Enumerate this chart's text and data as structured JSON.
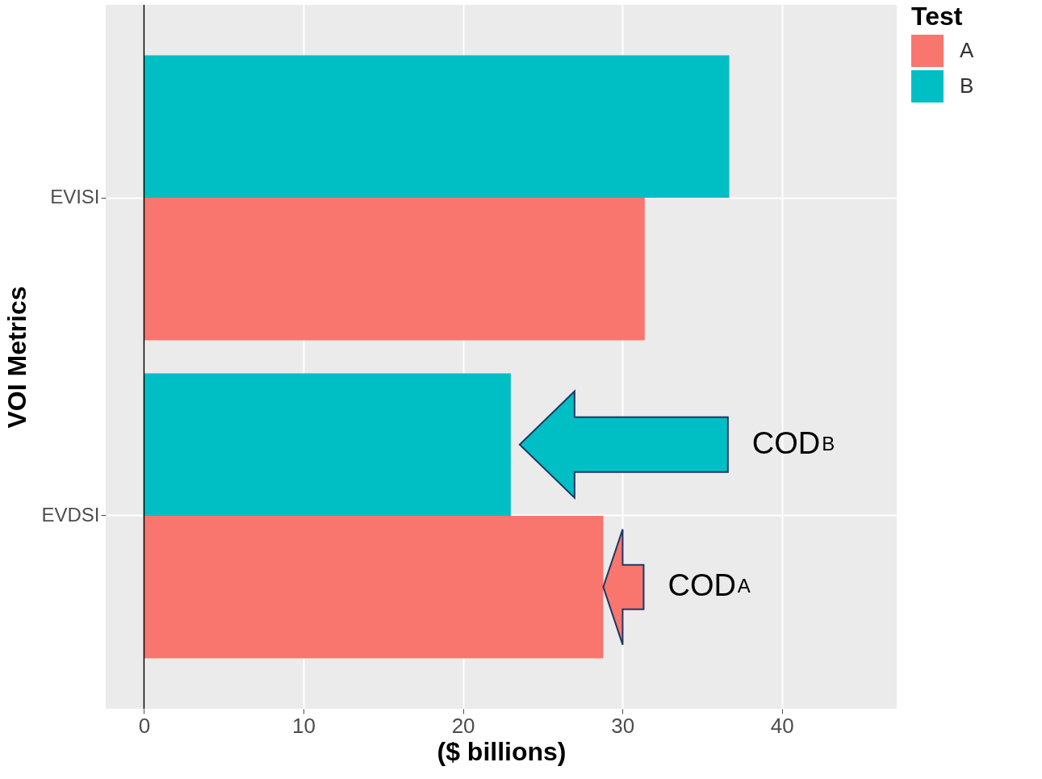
{
  "chart_data": {
    "type": "bar",
    "orientation": "horizontal",
    "xlabel": "($ billions)",
    "ylabel": "VOI Metrics",
    "legend_title": "Test",
    "categories": [
      "EVISI",
      "EVDSI"
    ],
    "series": [
      {
        "name": "A",
        "color": "#f8766d",
        "values": [
          31.4,
          28.8
        ]
      },
      {
        "name": "B",
        "color": "#00bfc4",
        "values": [
          36.7,
          23.0
        ]
      }
    ],
    "xlim": [
      -2.4,
      47.2
    ],
    "xticks": [
      0,
      10,
      20,
      30,
      40
    ],
    "grid": true,
    "legend": "right",
    "ref_lines": [
      {
        "axis": "x",
        "value": 0,
        "color": "#000000"
      }
    ],
    "annotations": [
      "COD$_{B}$",
      "COD$_{A}$"
    ]
  }
}
